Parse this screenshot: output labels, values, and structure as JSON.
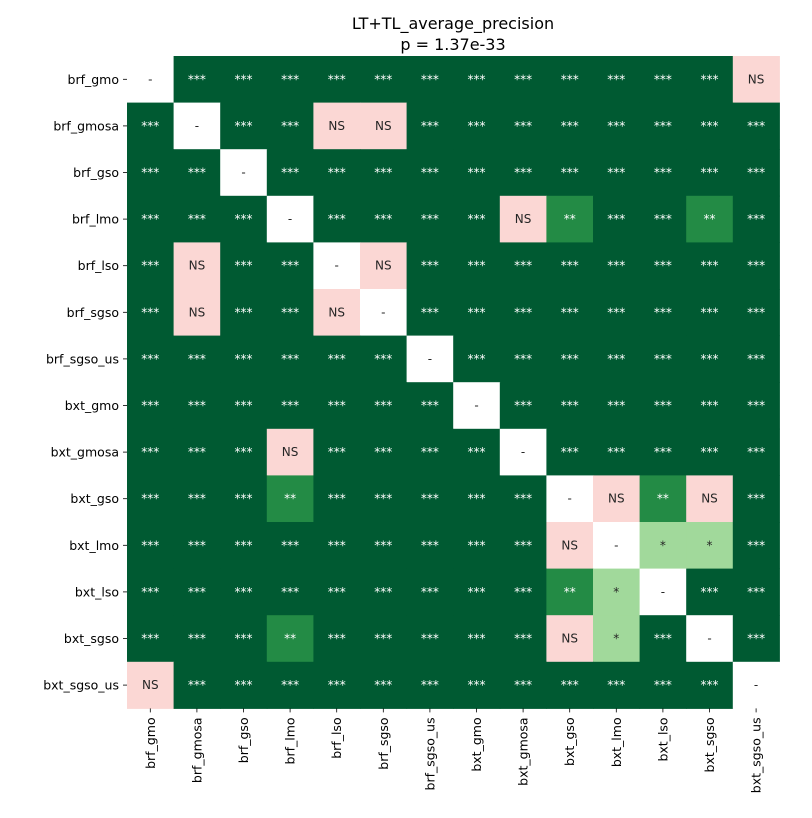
{
  "chart_data": {
    "type": "heatmap",
    "title": "LT+TL_average_precision",
    "subtitle": "p = 1.37e-33",
    "rows": [
      "brf_gmo",
      "brf_gmosa",
      "brf_gso",
      "brf_lmo",
      "brf_lso",
      "brf_sgso",
      "brf_sgso_us",
      "bxt_gmo",
      "bxt_gmosa",
      "bxt_gso",
      "bxt_lmo",
      "bxt_lso",
      "bxt_sgso",
      "bxt_sgso_us"
    ],
    "columns": [
      "brf_gmo",
      "brf_gmosa",
      "brf_gso",
      "brf_lmo",
      "brf_lso",
      "brf_sgso",
      "brf_sgso_us",
      "bxt_gmo",
      "bxt_gmosa",
      "bxt_gso",
      "bxt_lmo",
      "bxt_lso",
      "bxt_sgso",
      "bxt_sgso_us"
    ],
    "cells": [
      [
        "-",
        "***",
        "***",
        "***",
        "***",
        "***",
        "***",
        "***",
        "***",
        "***",
        "***",
        "***",
        "***",
        "NS"
      ],
      [
        "***",
        "-",
        "***",
        "***",
        "NS",
        "NS",
        "***",
        "***",
        "***",
        "***",
        "***",
        "***",
        "***",
        "***"
      ],
      [
        "***",
        "***",
        "-",
        "***",
        "***",
        "***",
        "***",
        "***",
        "***",
        "***",
        "***",
        "***",
        "***",
        "***"
      ],
      [
        "***",
        "***",
        "***",
        "-",
        "***",
        "***",
        "***",
        "***",
        "NS",
        "**",
        "***",
        "***",
        "**",
        "***"
      ],
      [
        "***",
        "NS",
        "***",
        "***",
        "-",
        "NS",
        "***",
        "***",
        "***",
        "***",
        "***",
        "***",
        "***",
        "***"
      ],
      [
        "***",
        "NS",
        "***",
        "***",
        "NS",
        "-",
        "***",
        "***",
        "***",
        "***",
        "***",
        "***",
        "***",
        "***"
      ],
      [
        "***",
        "***",
        "***",
        "***",
        "***",
        "***",
        "-",
        "***",
        "***",
        "***",
        "***",
        "***",
        "***",
        "***"
      ],
      [
        "***",
        "***",
        "***",
        "***",
        "***",
        "***",
        "***",
        "-",
        "***",
        "***",
        "***",
        "***",
        "***",
        "***"
      ],
      [
        "***",
        "***",
        "***",
        "NS",
        "***",
        "***",
        "***",
        "***",
        "-",
        "***",
        "***",
        "***",
        "***",
        "***"
      ],
      [
        "***",
        "***",
        "***",
        "**",
        "***",
        "***",
        "***",
        "***",
        "***",
        "-",
        "NS",
        "**",
        "NS",
        "***"
      ],
      [
        "***",
        "***",
        "***",
        "***",
        "***",
        "***",
        "***",
        "***",
        "***",
        "NS",
        "-",
        "*",
        "*",
        "***"
      ],
      [
        "***",
        "***",
        "***",
        "***",
        "***",
        "***",
        "***",
        "***",
        "***",
        "**",
        "*",
        "-",
        "***",
        "***"
      ],
      [
        "***",
        "***",
        "***",
        "**",
        "***",
        "***",
        "***",
        "***",
        "***",
        "NS",
        "*",
        "***",
        "-",
        "***"
      ],
      [
        "NS",
        "***",
        "***",
        "***",
        "***",
        "***",
        "***",
        "***",
        "***",
        "***",
        "***",
        "***",
        "***",
        "-"
      ]
    ],
    "color_map": {
      "***": "#005a32",
      "**": "#238b45",
      "*": "#a1d99b",
      "NS": "#fbd7d4",
      "-": "#ffffff"
    },
    "text_color_map": {
      "***": "#ffffff",
      "**": "#ffffff",
      "*": "#262626",
      "NS": "#262626",
      "-": "#262626"
    }
  }
}
